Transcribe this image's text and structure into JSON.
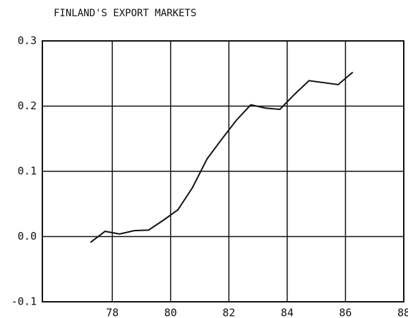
{
  "chart_data": {
    "type": "line",
    "title": "FINLAND'S EXPORT MARKETS",
    "x": [
      77.25,
      77.75,
      78.25,
      78.75,
      79.25,
      79.75,
      80.25,
      80.75,
      81.25,
      81.75,
      82.25,
      82.75,
      83.25,
      83.75,
      84.25,
      84.75,
      85.75,
      86.25
    ],
    "series": [
      {
        "color": "#111111",
        "values": [
          -0.009,
          0.008,
          0.004,
          0.009,
          0.01,
          0.025,
          0.041,
          0.075,
          0.119,
          0.149,
          0.178,
          0.202,
          0.197,
          0.195,
          0.218,
          0.239,
          0.233,
          0.252
        ]
      }
    ],
    "xlim": [
      75.6,
      88
    ],
    "xticks": [
      78,
      80,
      82,
      84,
      86,
      88
    ],
    "ylim": [
      -0.1,
      0.3
    ],
    "yticks": [
      {
        "value": -0.1,
        "label": "-0.1"
      },
      {
        "value": 0,
        "label": "0.0"
      },
      {
        "value": 0.1,
        "label": "0.1"
      },
      {
        "value": 0.2,
        "label": "0.2"
      },
      {
        "value": 0.3,
        "label": "0.3"
      }
    ],
    "grid": true
  }
}
